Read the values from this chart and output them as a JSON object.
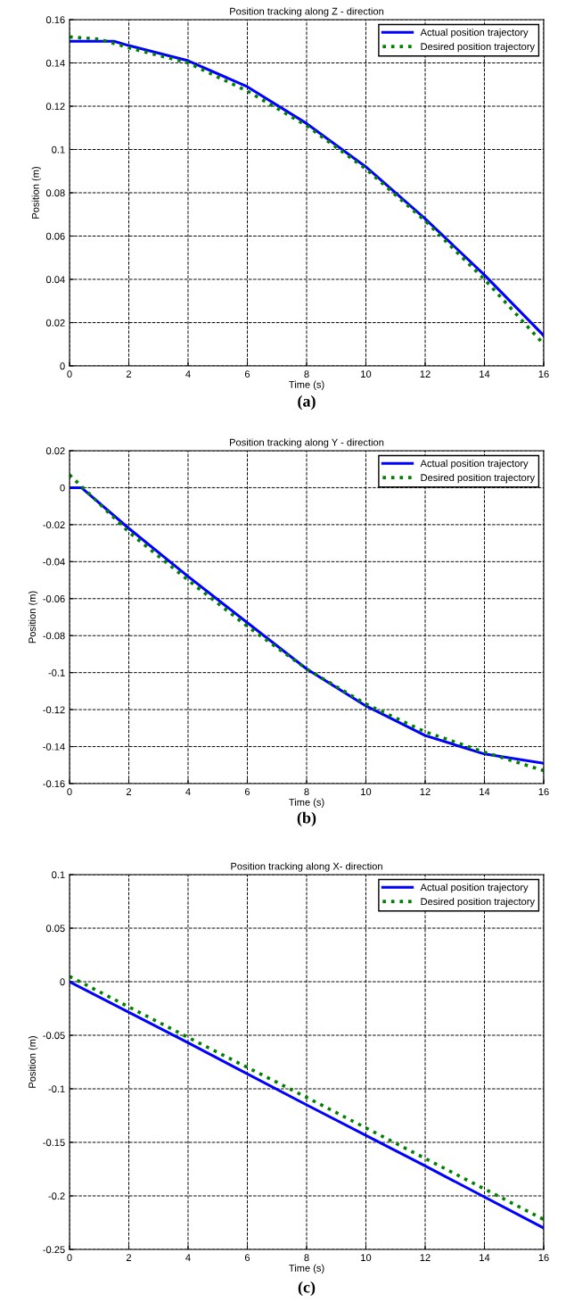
{
  "chart_data": [
    {
      "type": "line",
      "title": "Position tracking along Z - direction",
      "xlabel": "Time (s)",
      "ylabel": "Position (m)",
      "annotations": [
        "(a)"
      ],
      "xlim": [
        0,
        16
      ],
      "xticks": [
        0,
        2,
        4,
        6,
        8,
        10,
        12,
        14,
        16
      ],
      "ylim": [
        0,
        0.16
      ],
      "yticks": [
        0,
        0.02,
        0.04,
        0.06,
        0.08,
        0.1,
        0.12,
        0.14,
        0.16
      ],
      "grid": true,
      "legend": "top right",
      "series": [
        {
          "name": "Actual position trajectory",
          "color": "#0000ff",
          "line_style": "solid",
          "x": [
            0,
            1.5,
            2,
            4,
            6,
            8,
            10,
            12,
            14,
            16
          ],
          "values": [
            0.15,
            0.15,
            0.148,
            0.141,
            0.129,
            0.112,
            0.092,
            0.068,
            0.042,
            0.014
          ]
        },
        {
          "name": "Desired position trajectory",
          "color": "#008000",
          "line_style": "dotted",
          "x": [
            0,
            1,
            2,
            4,
            6,
            8,
            10,
            12,
            14,
            16
          ],
          "values": [
            0.152,
            0.151,
            0.147,
            0.14,
            0.127,
            0.111,
            0.091,
            0.067,
            0.04,
            0.01
          ]
        }
      ]
    },
    {
      "type": "line",
      "title": "Position tracking along Y - direction",
      "xlabel": "Time (s)",
      "ylabel": "Position (m)",
      "annotations": [
        "(b)"
      ],
      "xlim": [
        0,
        16
      ],
      "xticks": [
        0,
        2,
        4,
        6,
        8,
        10,
        12,
        14,
        16
      ],
      "ylim": [
        -0.16,
        0.02
      ],
      "yticks": [
        -0.16,
        -0.14,
        -0.12,
        -0.1,
        -0.08,
        -0.06,
        -0.04,
        -0.02,
        0,
        0.02
      ],
      "grid": true,
      "legend": "top right",
      "series": [
        {
          "name": "Actual position trajectory",
          "color": "#0000ff",
          "line_style": "solid",
          "x": [
            0,
            0.4,
            2,
            4,
            6,
            8,
            10,
            12,
            14,
            16
          ],
          "values": [
            0,
            0,
            -0.022,
            -0.048,
            -0.073,
            -0.098,
            -0.118,
            -0.134,
            -0.144,
            -0.149
          ]
        },
        {
          "name": "Desired position trajectory",
          "color": "#008000",
          "line_style": "dotted",
          "x": [
            0,
            2,
            4,
            6,
            8,
            10,
            12,
            14,
            16
          ],
          "values": [
            0.007,
            -0.024,
            -0.05,
            -0.075,
            -0.098,
            -0.117,
            -0.132,
            -0.143,
            -0.153
          ]
        }
      ]
    },
    {
      "type": "line",
      "title": "Position tracking along X- direction",
      "xlabel": "Time (s)",
      "ylabel": "Position (m)",
      "annotations": [
        "(c)"
      ],
      "xlim": [
        0,
        16
      ],
      "xticks": [
        0,
        2,
        4,
        6,
        8,
        10,
        12,
        14,
        16
      ],
      "ylim": [
        -0.25,
        0.1
      ],
      "yticks": [
        -0.25,
        -0.2,
        -0.15,
        -0.1,
        -0.05,
        0,
        0.05,
        0.1
      ],
      "grid": true,
      "legend": "top right",
      "series": [
        {
          "name": "Actual position trajectory",
          "color": "#0000ff",
          "line_style": "solid",
          "x": [
            0,
            4,
            8,
            12,
            16
          ],
          "values": [
            0,
            -0.057,
            -0.115,
            -0.172,
            -0.23
          ]
        },
        {
          "name": "Desired position trajectory",
          "color": "#008000",
          "line_style": "dotted",
          "x": [
            0,
            4,
            8,
            12,
            16
          ],
          "values": [
            0.005,
            -0.052,
            -0.108,
            -0.165,
            -0.222
          ]
        }
      ]
    }
  ]
}
